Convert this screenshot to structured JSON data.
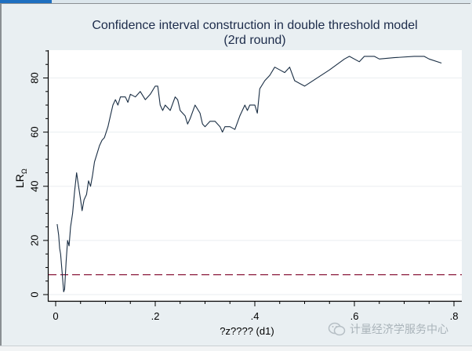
{
  "chart_data": {
    "type": "line",
    "title": "Confidence interval construction in double threshold model",
    "subtitle": "(2rd round)",
    "xlabel": "?z???? (d1)",
    "ylabel": "LR",
    "ylabel_subscript": "Ω",
    "xlim": [
      -0.005,
      0.815
    ],
    "ylim": [
      -3,
      91
    ],
    "x_ticks": [
      0,
      0.2,
      0.4,
      0.6,
      0.8
    ],
    "x_tick_labels": [
      "0",
      ".2",
      ".4",
      ".6",
      ".8"
    ],
    "y_ticks": [
      0,
      20,
      40,
      60,
      80
    ],
    "y_tick_labels": [
      "0",
      "20",
      "40",
      "60",
      "80"
    ],
    "grid": true,
    "reference_line": {
      "y": 7.35,
      "style": "dashed",
      "color": "#8b1a3c"
    },
    "series": [
      {
        "name": "LR",
        "color": "#1a2e44",
        "x": [
          0.003,
          0.006,
          0.008,
          0.01,
          0.013,
          0.016,
          0.018,
          0.021,
          0.024,
          0.027,
          0.03,
          0.034,
          0.038,
          0.042,
          0.046,
          0.05,
          0.053,
          0.057,
          0.062,
          0.066,
          0.07,
          0.074,
          0.078,
          0.083,
          0.088,
          0.093,
          0.098,
          0.105,
          0.11,
          0.115,
          0.12,
          0.125,
          0.13,
          0.14,
          0.145,
          0.15,
          0.16,
          0.17,
          0.18,
          0.19,
          0.2,
          0.205,
          0.21,
          0.215,
          0.22,
          0.23,
          0.24,
          0.245,
          0.25,
          0.26,
          0.265,
          0.27,
          0.28,
          0.29,
          0.295,
          0.3,
          0.31,
          0.32,
          0.33,
          0.335,
          0.34,
          0.35,
          0.36,
          0.37,
          0.38,
          0.385,
          0.39,
          0.4,
          0.405,
          0.41,
          0.42,
          0.43,
          0.44,
          0.45,
          0.46,
          0.47,
          0.48,
          0.5,
          0.55,
          0.58,
          0.59,
          0.61,
          0.62,
          0.64,
          0.65,
          0.68,
          0.72,
          0.74,
          0.75,
          0.775
        ],
        "values": [
          26,
          22,
          17,
          15,
          8,
          1,
          2,
          12,
          20,
          18,
          25,
          30,
          38,
          45,
          40,
          35,
          31,
          35,
          37,
          42,
          40,
          44,
          49,
          52,
          55,
          57,
          58,
          62,
          66,
          70,
          72,
          70,
          73,
          73,
          71,
          74,
          73,
          75,
          72,
          74,
          77,
          77,
          70,
          68,
          70,
          68,
          73,
          72,
          68,
          66,
          63,
          65,
          70,
          67,
          63,
          62,
          64,
          64,
          62,
          60,
          62,
          62,
          61,
          66,
          70,
          68,
          70,
          70,
          67,
          76,
          79,
          81,
          84,
          83,
          82,
          84,
          79,
          77,
          83,
          87,
          88,
          86,
          88,
          88,
          87,
          87.5,
          88,
          88,
          87,
          85.5
        ]
      }
    ]
  },
  "watermark": {
    "icon": "wechat-icon",
    "text": "计量经济学服务中心"
  }
}
